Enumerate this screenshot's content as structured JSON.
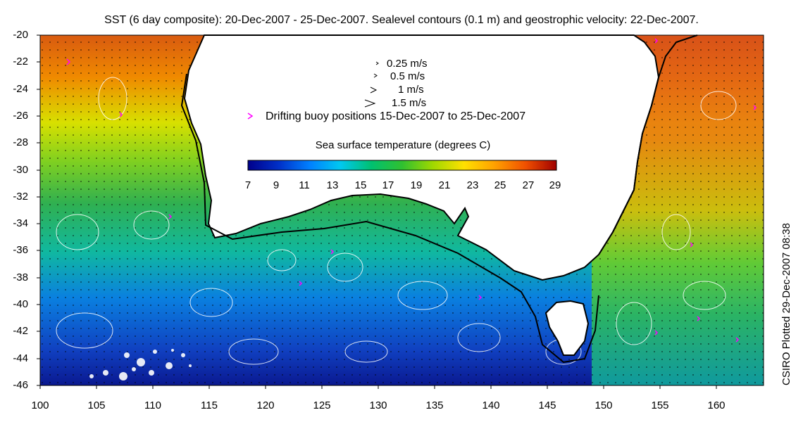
{
  "title": "SST (6 day composite): 20-Dec-2007 - 25-Dec-2007. Sealevel contours (0.1 m) and geostrophic velocity: 22-Dec-2007.",
  "credit": "CSIRO Plotted 29-Dec-2007 08:38",
  "y_ticks": [
    "-20",
    "-22",
    "-24",
    "-26",
    "-28",
    "-30",
    "-32",
    "-34",
    "-36",
    "-38",
    "-40",
    "-42",
    "-44",
    "-46"
  ],
  "x_ticks": [
    "100",
    "105",
    "110",
    "115",
    "120",
    "125",
    "130",
    "135",
    "140",
    "145",
    "150",
    "155",
    "160"
  ],
  "velocity_legend": [
    {
      "label": "0.25 m/s"
    },
    {
      "label": "0.5 m/s"
    },
    {
      "label": "1 m/s"
    },
    {
      "label": "1.5 m/s"
    }
  ],
  "buoy_legend": "Drifting buoy positions 15-Dec-2007 to 25-Dec-2007",
  "colorbar": {
    "title": "Sea surface temperature (degrees C)",
    "ticks": [
      "7",
      "9",
      "11",
      "13",
      "15",
      "17",
      "19",
      "21",
      "23",
      "25",
      "27",
      "29"
    ],
    "colors": [
      "#00008b",
      "#0040d0",
      "#0090ff",
      "#00d0e0",
      "#00c040",
      "#60d020",
      "#c0e000",
      "#ffe000",
      "#ffa000",
      "#ff6000",
      "#d02000",
      "#a00000"
    ]
  },
  "colors": {
    "land": "#ffffff",
    "coast": "#000000",
    "contour": "#ffffff",
    "buoy": "#ff00ff"
  }
}
